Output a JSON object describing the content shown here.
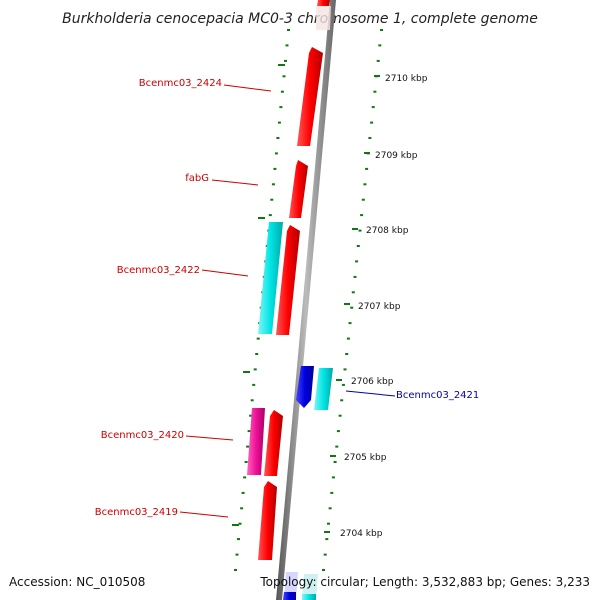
{
  "title": "Burkholderia cenocepacia MC0-3 chromosome 1, complete genome",
  "footer": {
    "accession": "Accession: NC_010508",
    "topology": "Topology: circular; Length: 3,532,883 bp; Genes: 3,233"
  },
  "colors": {
    "forward_gene": "#ff0000",
    "reverse_gene_blue": "#0000dd",
    "cds_cyan": "#00e5e5",
    "magenta": "#ee1199",
    "tick_green": "#117711",
    "label_red": "#cc0000",
    "label_blue": "#0000aa"
  },
  "scale_ticks": [
    {
      "label": "2710 kbp"
    },
    {
      "label": "2709 kbp"
    },
    {
      "label": "2708 kbp"
    },
    {
      "label": "2707 kbp"
    },
    {
      "label": "2706 kbp"
    },
    {
      "label": "2705 kbp"
    },
    {
      "label": "2704 kbp"
    }
  ],
  "gene_labels": [
    {
      "name": "Bcenmc03_2424",
      "color": "#cc0000"
    },
    {
      "name": "fabG",
      "color": "#cc0000"
    },
    {
      "name": "Bcenmc03_2422",
      "color": "#cc0000"
    },
    {
      "name": "Bcenmc03_2421",
      "color": "#0000aa"
    },
    {
      "name": "Bcenmc03_2420",
      "color": "#cc0000"
    },
    {
      "name": "Bcenmc03_2419",
      "color": "#cc0000"
    }
  ]
}
